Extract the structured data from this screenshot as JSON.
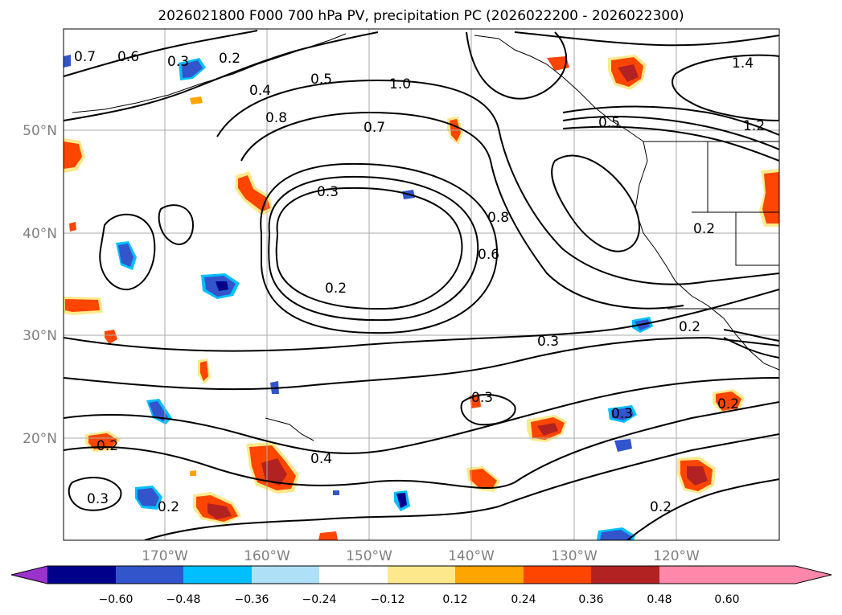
{
  "title": "2026021800 F000 700 hPa PV, precipitation PC (2026022200 - 2026022300)",
  "lat_ticks": [
    "50°N",
    "40°N",
    "30°N",
    "20°N"
  ],
  "lon_ticks": [
    "170°W",
    "160°W",
    "150°W",
    "140°W",
    "130°W",
    "120°W"
  ],
  "contour_labels": [
    "0.7",
    "0.6",
    "0.3",
    "0.2",
    "0.4",
    "0.5",
    "0.8",
    "1.0",
    "0.7",
    "0.3",
    "0.2",
    "0.8",
    "0.6",
    "0.3",
    "0.3",
    "0.4",
    "0.2",
    "0.3",
    "0.2",
    "0.2",
    "0.2",
    "0.3",
    "0.2",
    "1.4",
    "1.2",
    "0.5",
    "0.2"
  ],
  "colorbar": {
    "tick_labels": [
      "−0.60",
      "−0.48",
      "−0.36",
      "−0.24",
      "−0.12",
      "0.12",
      "0.24",
      "0.36",
      "0.48",
      "0.60"
    ],
    "colors": [
      "#9933cc",
      "#00008b",
      "#3355cc",
      "#00bfff",
      "#aee0f8",
      "#ffffff",
      "#fde98c",
      "#ffa500",
      "#ff4500",
      "#b22222",
      "#ff88aa"
    ]
  },
  "colors": {
    "grid": "#aaaaaa",
    "contour": "#000000",
    "tick_text": "#808080"
  }
}
